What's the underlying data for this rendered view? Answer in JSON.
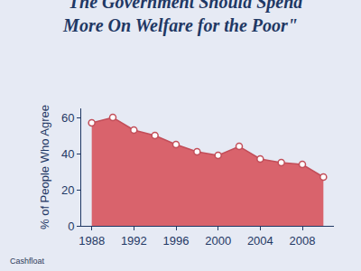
{
  "chart_data": {
    "type": "area",
    "title": "\"The Government Should Spend More On Welfare for the Poor\"",
    "y_label": "% of People Who Agree",
    "annotations": [
      "Cashfloat"
    ],
    "x": [
      1988,
      1990,
      1992,
      1994,
      1996,
      1998,
      2000,
      2002,
      2004,
      2006,
      2008,
      2010
    ],
    "values": [
      57,
      60,
      53,
      50,
      45,
      41,
      39,
      44,
      37,
      35,
      34,
      27
    ],
    "color": "#d9636c",
    "marker": "circle",
    "xlim": [
      1987,
      2011
    ],
    "xticks": [
      1988,
      1992,
      1996,
      2000,
      2004,
      2008
    ],
    "ylim": [
      0,
      65
    ],
    "yticks": [
      0,
      20,
      40,
      60
    ],
    "grid": false
  }
}
